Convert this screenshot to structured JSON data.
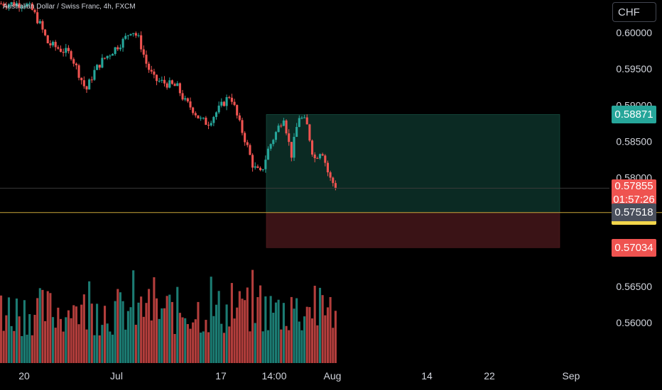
{
  "symbol_label": "Australian Dollar / Swiss Franc, 4h, FXCM",
  "currency": "CHF",
  "colors": {
    "up": "#26a69a",
    "down": "#ef5350",
    "up_volume": "#26a69a",
    "down_volume": "#ef5350",
    "profit_zone": "#0b2a23",
    "loss_zone": "#3a1316",
    "entry_line": "#c9a53a"
  },
  "price_tags": {
    "target": "0.58871",
    "current": "0.57855",
    "countdown": "01:57:26",
    "entry": "0.57518",
    "stop": "0.57034"
  },
  "chart_data": {
    "type": "candlestick",
    "title": "Australian Dollar / Swiss Franc, 4h, FXCM",
    "ylabel": "CHF",
    "ylim": [
      0.5556,
      0.6045
    ],
    "y_ticks": [
      "0.60000",
      "0.59500",
      "0.59000",
      "0.58500",
      "0.58000",
      "0.56500",
      "0.56000"
    ],
    "x_ticks": [
      "20",
      "Jul",
      "17",
      "14:00",
      "Aug",
      "14",
      "22",
      "Sep"
    ],
    "current_price": 0.57855,
    "position": {
      "entry": 0.57518,
      "target": 0.58871,
      "stop": 0.57034,
      "start": "Jul 20",
      "end": "Aug 30"
    },
    "price_path": [
      [
        "Jun 20",
        0.604
      ],
      [
        "Jun 21",
        0.603
      ],
      [
        "Jun 22",
        0.601
      ],
      [
        "Jun 23",
        0.5985
      ],
      [
        "Jun 26",
        0.597
      ],
      [
        "Jun 27",
        0.5945
      ],
      [
        "Jun 28",
        0.592
      ],
      [
        "Jun 29",
        0.5945
      ],
      [
        "Jun 30",
        0.596
      ],
      [
        "Jul 3",
        0.599
      ],
      [
        "Jul 4",
        0.6005
      ],
      [
        "Jul 5",
        0.599
      ],
      [
        "Jul 6",
        0.5955
      ],
      [
        "Jul 7",
        0.5935
      ],
      [
        "Jul 10",
        0.5925
      ],
      [
        "Jul 11",
        0.5905
      ],
      [
        "Jul 12",
        0.5895
      ],
      [
        "Jul 13",
        0.588
      ],
      [
        "Jul 14",
        0.5875
      ],
      [
        "Jul 17",
        0.5915
      ],
      [
        "Jul 18",
        0.588
      ],
      [
        "Jul 19",
        0.585
      ],
      [
        "Jul 20",
        0.5815
      ],
      [
        "Jul 21",
        0.5805
      ],
      [
        "Jul 22",
        0.584
      ],
      [
        "Jul 24",
        0.5885
      ],
      [
        "Jul 25",
        0.583
      ],
      [
        "Jul 26",
        0.5885
      ],
      [
        "Jul 27",
        0.5875
      ],
      [
        "Jul 28",
        0.5825
      ],
      [
        "Jul 29",
        0.584
      ],
      [
        "Jul 30",
        0.58
      ],
      [
        "Jul 31",
        0.57855
      ]
    ]
  }
}
